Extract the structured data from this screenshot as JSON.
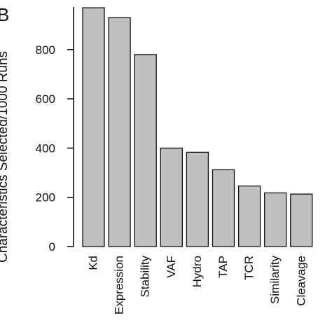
{
  "panel_label": "B",
  "chart_data": {
    "type": "bar",
    "categories": [
      "Kd",
      "Expression",
      "Stability",
      "VAF",
      "Hydro",
      "TAP",
      "TCR",
      "Similarity",
      "Cleavage"
    ],
    "values": [
      970,
      930,
      780,
      400,
      383,
      312,
      246,
      218,
      213
    ],
    "ylabel": "Characteristics Selected/1000 Runs",
    "xlabel": "",
    "yticks": [
      0,
      200,
      400,
      600,
      800
    ],
    "ylim": [
      0,
      1000
    ],
    "grid": false,
    "legend": "none",
    "bar_color": "#bfbfbf",
    "edge_color": "#111111"
  }
}
